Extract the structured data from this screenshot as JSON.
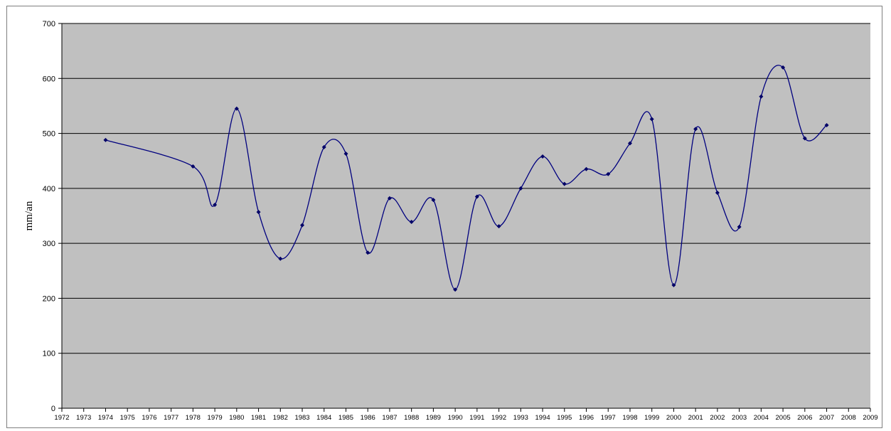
{
  "chart_data": {
    "type": "line",
    "title": "",
    "xlabel": "",
    "ylabel": "mm/an",
    "xlim": [
      1972,
      2009
    ],
    "ylim": [
      0,
      700
    ],
    "y_ticks": [
      "0",
      "100",
      "200",
      "300",
      "400",
      "500",
      "600",
      "700"
    ],
    "x_ticks": [
      "1972",
      "1973",
      "1974",
      "1975",
      "1976",
      "1977",
      "1978",
      "1979",
      "1980",
      "1981",
      "1982",
      "1983",
      "1984",
      "1985",
      "1986",
      "1987",
      "1988",
      "1989",
      "1990",
      "1991",
      "1992",
      "1993",
      "1994",
      "1995",
      "1996",
      "1997",
      "1998",
      "1999",
      "2000",
      "2001",
      "2002",
      "2003",
      "2004",
      "2005",
      "2006",
      "2007",
      "2008",
      "2009"
    ],
    "grid": "horizontal",
    "legend": "none",
    "plot_background": "#c0c0c0",
    "line_color": "#00007f",
    "marker_color": "#000066",
    "smoothed": true,
    "series": [
      {
        "x": [
          1974,
          1978,
          1979,
          1980,
          1981,
          1982,
          1983,
          1984,
          1985,
          1986,
          1987,
          1988,
          1989,
          1990,
          1991,
          1992,
          1993,
          1994,
          1995,
          1996,
          1997,
          1998,
          1999,
          2000,
          2001,
          2002,
          2003,
          2004,
          2005,
          2006,
          2007
        ],
        "values": [
          488,
          440,
          370,
          545,
          357,
          272,
          333,
          475,
          463,
          283,
          382,
          339,
          379,
          216,
          385,
          331,
          400,
          458,
          408,
          435,
          426,
          482,
          526,
          224,
          508,
          392,
          330,
          567,
          620,
          491,
          515
        ]
      }
    ]
  }
}
